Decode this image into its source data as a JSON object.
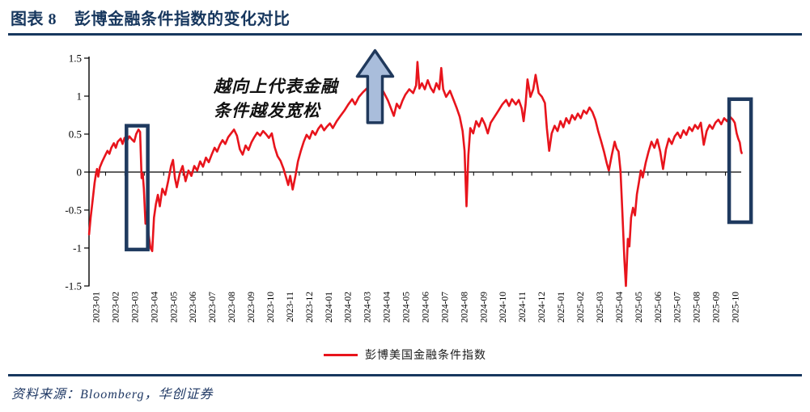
{
  "page": {
    "title_prefix": "图表 8",
    "title": "彭博金融条件指数的变化对比",
    "source_label": "资料来源：Bloomberg，华创证券"
  },
  "colors": {
    "accent_navy": "#17375E",
    "line_red": "#E8141C",
    "arrow_fill": "#A9BDDB",
    "arrow_border": "#20395C",
    "highlight_border": "#1F3A5F",
    "axis_black": "#000000"
  },
  "annotation": {
    "line1": "越向上代表金融",
    "line2": "条件越发宽松"
  },
  "legend": {
    "label": "彭博美国金融条件指数"
  },
  "chart_data": {
    "type": "line",
    "title": "",
    "xlabel": "",
    "ylabel": "",
    "ylim": [
      -1.5,
      1.5
    ],
    "y_ticks": [
      1.5,
      1,
      0.5,
      0,
      -0.5,
      -1,
      -1.5
    ],
    "grid": false,
    "legend_position": "bottom-center",
    "x_tick_labels": [
      "2023-01",
      "2023-02",
      "2023-03",
      "2023-04",
      "2023-05",
      "2023-06",
      "2023-07",
      "2023-08",
      "2023-09",
      "2023-10",
      "2023-11",
      "2023-12",
      "2024-01",
      "2024-02",
      "2024-03",
      "2024-04",
      "2024-05",
      "2024-06",
      "2024-07",
      "2024-08",
      "2024-09",
      "2024-10",
      "2024-11",
      "2024-12",
      "2025-01",
      "2025-02",
      "2025-03",
      "2025-04",
      "2025-05",
      "2025-06",
      "2025-07",
      "2025-08",
      "2025-09",
      "2025-10"
    ],
    "series": [
      {
        "name": "彭博美国金融条件指数",
        "color": "#E8141C",
        "points": [
          [
            -0.33,
            -0.82
          ],
          [
            -0.25,
            -0.6
          ],
          [
            -0.15,
            -0.38
          ],
          [
            -0.05,
            -0.15
          ],
          [
            0.02,
            -0.03
          ],
          [
            0.08,
            0.04
          ],
          [
            0.14,
            -0.06
          ],
          [
            0.22,
            0.06
          ],
          [
            0.35,
            0.14
          ],
          [
            0.5,
            0.22
          ],
          [
            0.62,
            0.28
          ],
          [
            0.72,
            0.24
          ],
          [
            0.82,
            0.32
          ],
          [
            0.95,
            0.38
          ],
          [
            1.05,
            0.32
          ],
          [
            1.15,
            0.4
          ],
          [
            1.3,
            0.44
          ],
          [
            1.4,
            0.37
          ],
          [
            1.5,
            0.45
          ],
          [
            1.62,
            0.41
          ],
          [
            1.75,
            0.47
          ],
          [
            1.88,
            0.43
          ],
          [
            2.0,
            0.4
          ],
          [
            2.1,
            0.5
          ],
          [
            2.22,
            0.56
          ],
          [
            2.3,
            0.53
          ],
          [
            2.38,
            -0.08
          ],
          [
            2.44,
            -0.02
          ],
          [
            2.5,
            -0.22
          ],
          [
            2.58,
            -0.68
          ],
          [
            2.66,
            -0.52
          ],
          [
            2.74,
            -0.82
          ],
          [
            2.84,
            -1.0
          ],
          [
            2.93,
            -1.04
          ],
          [
            3.02,
            -0.6
          ],
          [
            3.12,
            -0.42
          ],
          [
            3.22,
            -0.3
          ],
          [
            3.32,
            -0.45
          ],
          [
            3.45,
            -0.22
          ],
          [
            3.6,
            -0.3
          ],
          [
            3.75,
            -0.12
          ],
          [
            3.9,
            0.08
          ],
          [
            4.0,
            0.16
          ],
          [
            4.1,
            -0.08
          ],
          [
            4.2,
            -0.2
          ],
          [
            4.35,
            -0.02
          ],
          [
            4.5,
            0.08
          ],
          [
            4.65,
            -0.12
          ],
          [
            4.8,
            0.02
          ],
          [
            4.95,
            -0.05
          ],
          [
            5.1,
            0.08
          ],
          [
            5.25,
            0.02
          ],
          [
            5.4,
            0.14
          ],
          [
            5.55,
            0.07
          ],
          [
            5.7,
            0.19
          ],
          [
            5.85,
            0.13
          ],
          [
            6.0,
            0.23
          ],
          [
            6.15,
            0.32
          ],
          [
            6.28,
            0.27
          ],
          [
            6.42,
            0.36
          ],
          [
            6.56,
            0.42
          ],
          [
            6.7,
            0.37
          ],
          [
            6.85,
            0.46
          ],
          [
            7.0,
            0.51
          ],
          [
            7.15,
            0.56
          ],
          [
            7.3,
            0.48
          ],
          [
            7.45,
            0.3
          ],
          [
            7.6,
            0.23
          ],
          [
            7.75,
            0.35
          ],
          [
            7.9,
            0.29
          ],
          [
            8.05,
            0.39
          ],
          [
            8.2,
            0.46
          ],
          [
            8.35,
            0.52
          ],
          [
            8.5,
            0.48
          ],
          [
            8.65,
            0.54
          ],
          [
            8.8,
            0.5
          ],
          [
            8.95,
            0.45
          ],
          [
            9.1,
            0.51
          ],
          [
            9.25,
            0.33
          ],
          [
            9.4,
            0.21
          ],
          [
            9.55,
            0.15
          ],
          [
            9.7,
            0.05
          ],
          [
            9.85,
            -0.08
          ],
          [
            9.95,
            -0.17
          ],
          [
            10.05,
            -0.05
          ],
          [
            10.18,
            -0.23
          ],
          [
            10.32,
            -0.05
          ],
          [
            10.45,
            0.14
          ],
          [
            10.6,
            0.28
          ],
          [
            10.75,
            0.4
          ],
          [
            10.9,
            0.49
          ],
          [
            11.05,
            0.44
          ],
          [
            11.2,
            0.54
          ],
          [
            11.35,
            0.49
          ],
          [
            11.5,
            0.57
          ],
          [
            11.65,
            0.62
          ],
          [
            11.8,
            0.55
          ],
          [
            11.95,
            0.6
          ],
          [
            12.1,
            0.64
          ],
          [
            12.25,
            0.58
          ],
          [
            12.45,
            0.67
          ],
          [
            12.65,
            0.74
          ],
          [
            12.85,
            0.81
          ],
          [
            13.05,
            0.89
          ],
          [
            13.25,
            0.96
          ],
          [
            13.4,
            0.89
          ],
          [
            13.6,
            0.99
          ],
          [
            13.8,
            1.05
          ],
          [
            14.0,
            1.1
          ],
          [
            14.15,
            1.02
          ],
          [
            14.3,
            1.12
          ],
          [
            14.5,
            1.06
          ],
          [
            14.7,
            1.13
          ],
          [
            14.9,
            1.04
          ],
          [
            15.1,
            0.94
          ],
          [
            15.25,
            0.84
          ],
          [
            15.4,
            0.74
          ],
          [
            15.55,
            0.9
          ],
          [
            15.7,
            0.84
          ],
          [
            15.85,
            0.94
          ],
          [
            16.0,
            1.02
          ],
          [
            16.2,
            1.09
          ],
          [
            16.4,
            1.04
          ],
          [
            16.55,
            1.14
          ],
          [
            16.62,
            1.45
          ],
          [
            16.72,
            1.1
          ],
          [
            16.85,
            1.17
          ],
          [
            17.0,
            1.09
          ],
          [
            17.15,
            1.21
          ],
          [
            17.3,
            1.11
          ],
          [
            17.45,
            1.05
          ],
          [
            17.6,
            1.17
          ],
          [
            17.75,
            1.09
          ],
          [
            17.85,
            1.37
          ],
          [
            17.95,
            1.09
          ],
          [
            18.1,
            0.99
          ],
          [
            18.3,
            1.07
          ],
          [
            18.5,
            0.94
          ],
          [
            18.65,
            0.84
          ],
          [
            18.8,
            0.73
          ],
          [
            18.95,
            0.54
          ],
          [
            19.05,
            0.28
          ],
          [
            19.15,
            -0.45
          ],
          [
            19.25,
            0.22
          ],
          [
            19.35,
            0.58
          ],
          [
            19.5,
            0.51
          ],
          [
            19.65,
            0.67
          ],
          [
            19.8,
            0.6
          ],
          [
            19.95,
            0.71
          ],
          [
            20.1,
            0.63
          ],
          [
            20.25,
            0.51
          ],
          [
            20.4,
            0.65
          ],
          [
            20.6,
            0.73
          ],
          [
            20.8,
            0.81
          ],
          [
            21.0,
            0.89
          ],
          [
            21.2,
            0.95
          ],
          [
            21.35,
            0.87
          ],
          [
            21.5,
            0.96
          ],
          [
            21.7,
            0.89
          ],
          [
            21.85,
            0.95
          ],
          [
            22.0,
            0.84
          ],
          [
            22.1,
            0.67
          ],
          [
            22.2,
            0.89
          ],
          [
            22.3,
            1.22
          ],
          [
            22.45,
            0.99
          ],
          [
            22.6,
            1.09
          ],
          [
            22.72,
            1.28
          ],
          [
            22.88,
            1.04
          ],
          [
            23.05,
            0.99
          ],
          [
            23.2,
            0.91
          ],
          [
            23.3,
            0.58
          ],
          [
            23.42,
            0.28
          ],
          [
            23.55,
            0.51
          ],
          [
            23.7,
            0.61
          ],
          [
            23.85,
            0.54
          ],
          [
            24.0,
            0.67
          ],
          [
            24.15,
            0.59
          ],
          [
            24.3,
            0.71
          ],
          [
            24.45,
            0.64
          ],
          [
            24.6,
            0.75
          ],
          [
            24.75,
            0.69
          ],
          [
            24.9,
            0.77
          ],
          [
            25.05,
            0.71
          ],
          [
            25.2,
            0.81
          ],
          [
            25.35,
            0.77
          ],
          [
            25.5,
            0.85
          ],
          [
            25.65,
            0.79
          ],
          [
            25.8,
            0.69
          ],
          [
            25.95,
            0.54
          ],
          [
            26.1,
            0.41
          ],
          [
            26.25,
            0.27
          ],
          [
            26.4,
            0.11
          ],
          [
            26.5,
            0.02
          ],
          [
            26.65,
            0.22
          ],
          [
            26.8,
            0.4
          ],
          [
            26.9,
            0.31
          ],
          [
            27.0,
            0.27
          ],
          [
            27.1,
            0.02
          ],
          [
            27.2,
            -0.55
          ],
          [
            27.3,
            -1.15
          ],
          [
            27.38,
            -1.5
          ],
          [
            27.48,
            -0.88
          ],
          [
            27.56,
            -0.98
          ],
          [
            27.65,
            -0.6
          ],
          [
            27.75,
            -0.47
          ],
          [
            27.85,
            -0.57
          ],
          [
            27.95,
            -0.29
          ],
          [
            28.05,
            -0.14
          ],
          [
            28.15,
            0.02
          ],
          [
            28.25,
            -0.07
          ],
          [
            28.4,
            0.12
          ],
          [
            28.55,
            0.27
          ],
          [
            28.7,
            0.4
          ],
          [
            28.85,
            0.32
          ],
          [
            29.0,
            0.43
          ],
          [
            29.15,
            0.27
          ],
          [
            29.3,
            0.04
          ],
          [
            29.45,
            0.3
          ],
          [
            29.6,
            0.44
          ],
          [
            29.75,
            0.37
          ],
          [
            29.9,
            0.47
          ],
          [
            30.05,
            0.52
          ],
          [
            30.2,
            0.45
          ],
          [
            30.35,
            0.55
          ],
          [
            30.5,
            0.49
          ],
          [
            30.65,
            0.59
          ],
          [
            30.8,
            0.54
          ],
          [
            30.95,
            0.62
          ],
          [
            31.1,
            0.57
          ],
          [
            31.25,
            0.65
          ],
          [
            31.4,
            0.36
          ],
          [
            31.55,
            0.54
          ],
          [
            31.7,
            0.62
          ],
          [
            31.85,
            0.57
          ],
          [
            32.0,
            0.65
          ],
          [
            32.15,
            0.69
          ],
          [
            32.3,
            0.63
          ],
          [
            32.45,
            0.71
          ],
          [
            32.6,
            0.67
          ],
          [
            32.75,
            0.73
          ],
          [
            32.9,
            0.69
          ],
          [
            33.0,
            0.65
          ],
          [
            33.1,
            0.51
          ],
          [
            33.18,
            0.44
          ],
          [
            33.26,
            0.39
          ],
          [
            33.32,
            0.28
          ],
          [
            33.36,
            0.25
          ]
        ]
      }
    ],
    "annotations": {
      "note_text": "越向上代表金融条件越发宽松",
      "highlight_boxes": [
        {
          "m0": 1.6,
          "m1": 2.7,
          "v0": -1.02,
          "v1": 0.61
        },
        {
          "m0": 32.71,
          "m1": 33.84,
          "v0": -0.66,
          "v1": 0.96
        }
      ],
      "arrow": {
        "m": 14.43,
        "tip_v": 1.6,
        "head_base_v": 1.26,
        "bottom_v": 0.65,
        "head_half_m": 0.92,
        "shaft_half_m": 0.38
      }
    }
  }
}
